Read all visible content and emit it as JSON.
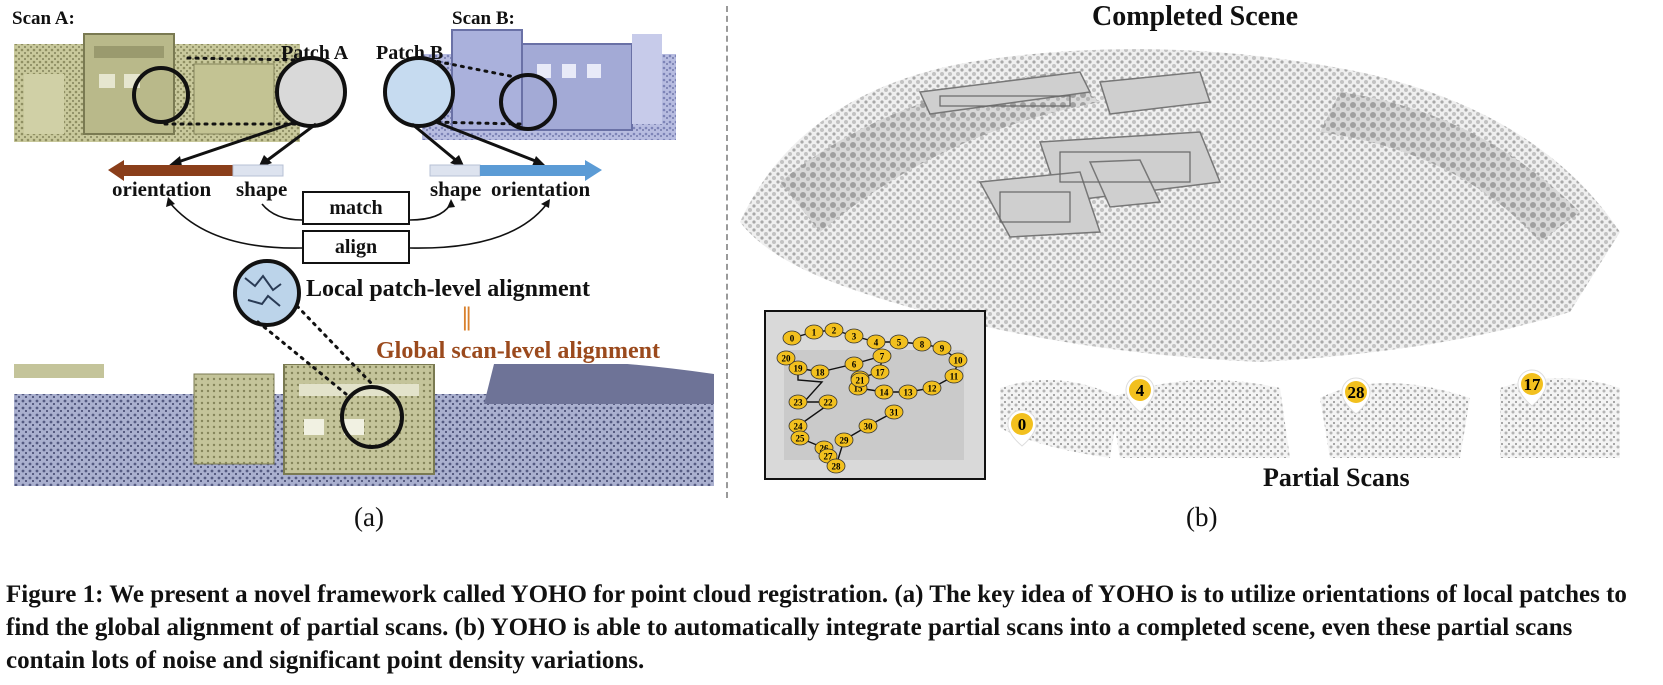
{
  "panel_a": {
    "scan_a": "Scan A:",
    "scan_b": "Scan B:",
    "patch_a": "Patch A",
    "patch_b": "Patch B",
    "orientation_left": "orientation",
    "shape_left": "shape",
    "shape_right": "shape",
    "orientation_right": "orientation",
    "match": "match",
    "align": "align",
    "local_alignment": "Local patch-level alignment",
    "equivalence_sign": "||",
    "global_alignment": "Global scan-level alignment",
    "label": "(a)",
    "colors": {
      "orientation_a": "#8a3e1a",
      "orientation_b": "#5b9bd5",
      "global_text": "#9b4a1d",
      "scan_a_tint": "#b9b98a",
      "scan_b_tint": "#a9b0d8"
    }
  },
  "panel_b": {
    "title": "Completed Scene",
    "partial_scans": "Partial Scans",
    "label": "(b)",
    "trajectory_nodes": [
      "0",
      "1",
      "2",
      "3",
      "4",
      "5",
      "8",
      "9",
      "10",
      "11",
      "12",
      "13",
      "14",
      "15",
      "16",
      "17",
      "6",
      "7",
      "18",
      "19",
      "20",
      "21",
      "22",
      "23",
      "24",
      "25",
      "26",
      "27",
      "28",
      "29",
      "30",
      "31"
    ],
    "scan_markers": [
      "0",
      "4",
      "28",
      "17"
    ],
    "colors": {
      "marker": "#f2c01e"
    }
  },
  "caption": {
    "text": "Figure 1: We present a novel framework called YOHO for point cloud registration. (a) The key idea of YOHO is to utilize orientations of local patches to find the global alignment of partial scans. (b) YOHO is able to automatically integrate partial scans into a completed scene, even these partial scans contain lots of noise and significant point density variations."
  }
}
